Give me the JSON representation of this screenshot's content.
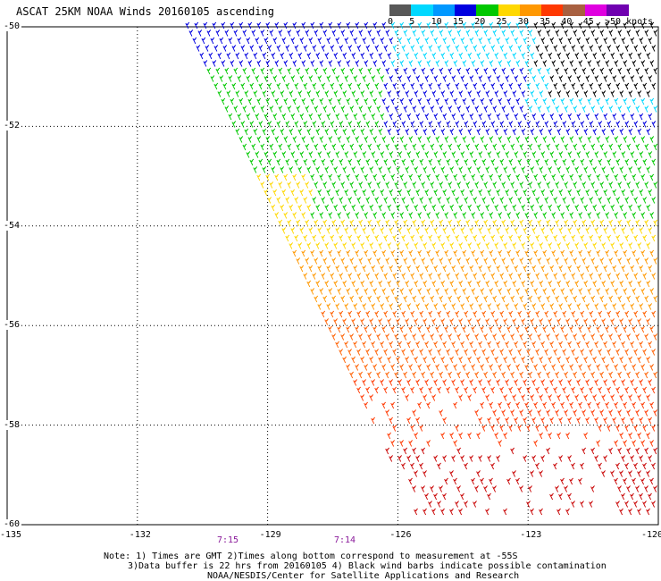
{
  "title": "ASCAT 25KM NOAA Winds 20160105 ascending",
  "legend": {
    "unit": "knots",
    "bins": [
      {
        "label": "0",
        "color": "#585858"
      },
      {
        "label": "5",
        "color": "#00d8ff"
      },
      {
        "label": "10",
        "color": "#0098ff"
      },
      {
        "label": "15",
        "color": "#0000e0"
      },
      {
        "label": "20",
        "color": "#00c800"
      },
      {
        "label": "25",
        "color": "#ffd800"
      },
      {
        "label": "30",
        "color": "#ff9800"
      },
      {
        "label": "35",
        "color": "#ff3800"
      },
      {
        "label": "40",
        "color": "#a86040"
      },
      {
        "label": "45",
        "color": "#e000e0"
      },
      {
        "label": ">50 knots",
        "color": "#7000b0"
      }
    ]
  },
  "axes": {
    "lat_labels": [
      "-50",
      "-52",
      "-54",
      "-56",
      "-58",
      "-60"
    ],
    "lon_labels": [
      "-135",
      "-132",
      "-129",
      "-126",
      "-123",
      "-120"
    ]
  },
  "times": [
    "7:15",
    "7:14"
  ],
  "notes": {
    "line1": "Note: 1) Times are GMT 2)Times along bottom correspond to measurement at -55S",
    "line2": "3)Data buffer is 22 hrs from 20160105 4) Black wind barbs indicate possible contamination",
    "credit": "NOAA/NESDIS/Center for Satellite Applications and Research"
  }
}
